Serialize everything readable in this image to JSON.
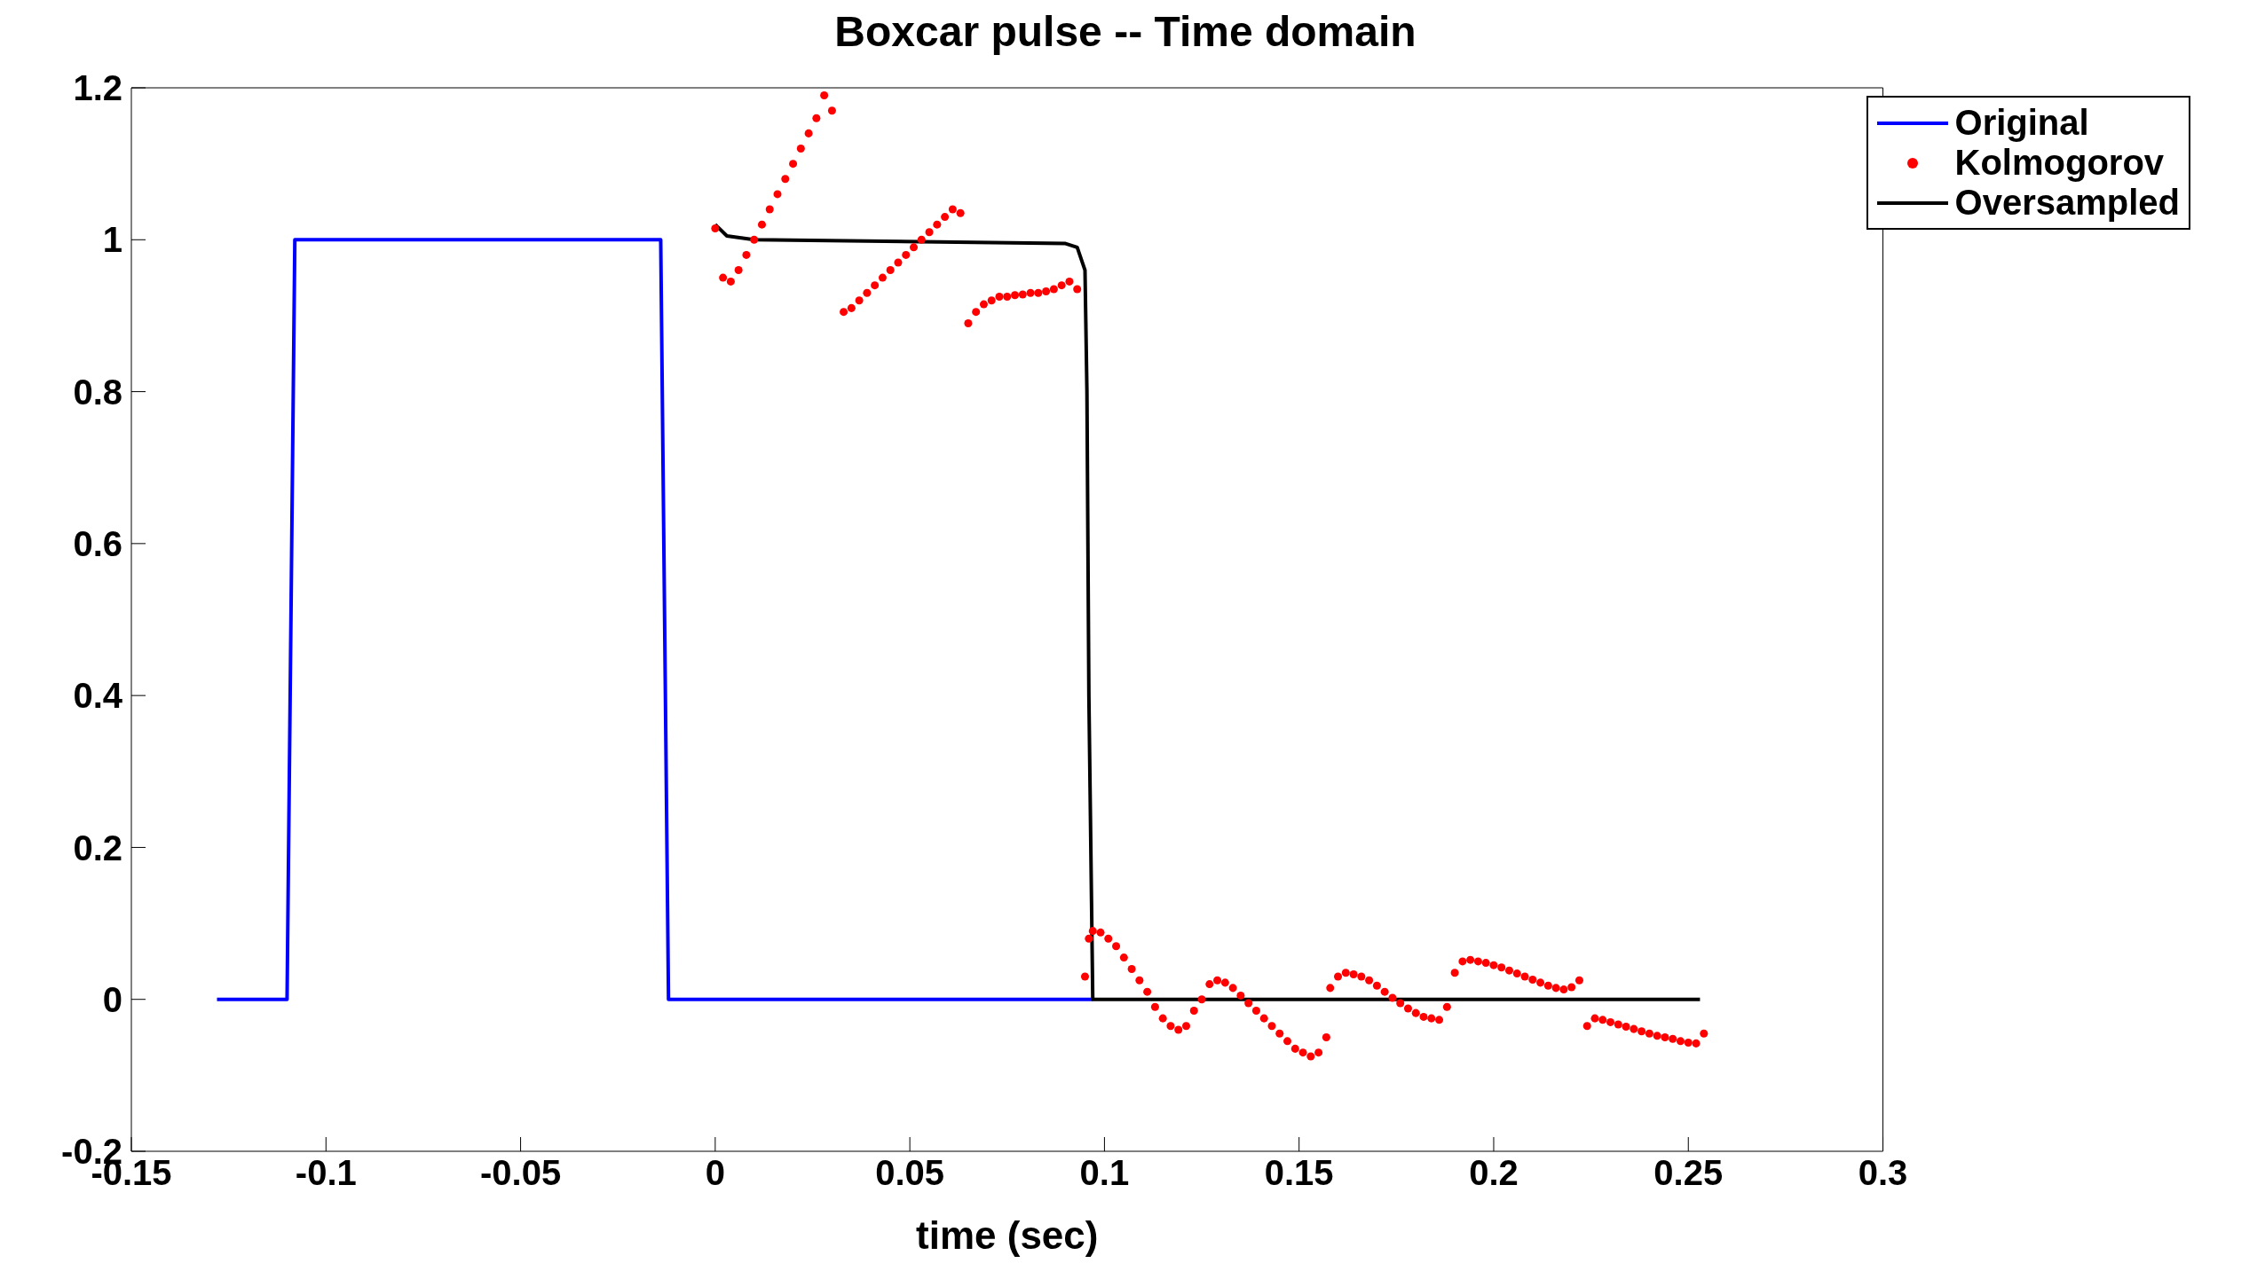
{
  "chart_data": {
    "type": "line",
    "title": "Boxcar pulse -- Time domain",
    "xlabel": "time (sec)",
    "xlim": [
      -0.15,
      0.3
    ],
    "xticks": [
      -0.15,
      -0.1,
      -0.05,
      0,
      0.05,
      0.1,
      0.15,
      0.2,
      0.25,
      0.3
    ],
    "ylim": [
      -0.2,
      1.2
    ],
    "yticks": [
      -0.2,
      0,
      0.2,
      0.4,
      0.6,
      0.8,
      1,
      1.2
    ],
    "grid": false,
    "legend": "top right",
    "series": [
      {
        "name": "Original",
        "color": "#0000ff",
        "x": [
          -0.128,
          -0.11,
          -0.108,
          -0.014,
          -0.012,
          0.097
        ],
        "values": [
          0,
          0,
          1,
          1,
          0,
          0
        ]
      },
      {
        "name": "Kolmogorov",
        "type": "scatter",
        "marker": "circle",
        "color": "#ff0000",
        "x": [
          0,
          0.002,
          0.004,
          0.006,
          0.008,
          0.01,
          0.012,
          0.014,
          0.016,
          0.018,
          0.02,
          0.022,
          0.024,
          0.026,
          0.028,
          0.03,
          0.033,
          0.035,
          0.037,
          0.039,
          0.041,
          0.043,
          0.045,
          0.047,
          0.049,
          0.051,
          0.053,
          0.055,
          0.057,
          0.059,
          0.061,
          0.063,
          0.065,
          0.067,
          0.069,
          0.071,
          0.073,
          0.075,
          0.077,
          0.079,
          0.081,
          0.083,
          0.085,
          0.087,
          0.089,
          0.091,
          0.093,
          0.095,
          0.096,
          0.097,
          0.099,
          0.101,
          0.103,
          0.105,
          0.107,
          0.109,
          0.111,
          0.113,
          0.115,
          0.117,
          0.119,
          0.121,
          0.123,
          0.125,
          0.127,
          0.129,
          0.131,
          0.133,
          0.135,
          0.137,
          0.139,
          0.141,
          0.143,
          0.145,
          0.147,
          0.149,
          0.151,
          0.153,
          0.155,
          0.157,
          0.158,
          0.16,
          0.162,
          0.164,
          0.166,
          0.168,
          0.17,
          0.172,
          0.174,
          0.176,
          0.178,
          0.18,
          0.182,
          0.184,
          0.186,
          0.188,
          0.19,
          0.192,
          0.194,
          0.196,
          0.198,
          0.2,
          0.202,
          0.204,
          0.206,
          0.208,
          0.21,
          0.212,
          0.214,
          0.216,
          0.218,
          0.22,
          0.222,
          0.224,
          0.226,
          0.228,
          0.23,
          0.232,
          0.234,
          0.236,
          0.238,
          0.24,
          0.242,
          0.244,
          0.246,
          0.248,
          0.25,
          0.252,
          0.254
        ],
        "values": [
          1.015,
          0.95,
          0.945,
          0.96,
          0.98,
          1.0,
          1.02,
          1.04,
          1.06,
          1.08,
          1.1,
          1.12,
          1.14,
          1.16,
          1.19,
          1.17,
          0.905,
          0.91,
          0.92,
          0.93,
          0.94,
          0.95,
          0.96,
          0.97,
          0.98,
          0.99,
          1.0,
          1.01,
          1.02,
          1.03,
          1.04,
          1.035,
          0.89,
          0.905,
          0.915,
          0.92,
          0.925,
          0.925,
          0.927,
          0.928,
          0.93,
          0.93,
          0.932,
          0.935,
          0.94,
          0.945,
          0.935,
          0.03,
          0.08,
          0.09,
          0.088,
          0.08,
          0.07,
          0.055,
          0.04,
          0.025,
          0.01,
          -0.01,
          -0.025,
          -0.035,
          -0.04,
          -0.035,
          -0.015,
          0.0,
          0.02,
          0.025,
          0.022,
          0.015,
          0.005,
          -0.005,
          -0.015,
          -0.025,
          -0.035,
          -0.045,
          -0.055,
          -0.065,
          -0.07,
          -0.075,
          -0.07,
          -0.05,
          0.015,
          0.03,
          0.035,
          0.033,
          0.03,
          0.025,
          0.018,
          0.01,
          0.002,
          -0.005,
          -0.012,
          -0.018,
          -0.023,
          -0.025,
          -0.027,
          -0.01,
          0.035,
          0.05,
          0.052,
          0.05,
          0.048,
          0.045,
          0.042,
          0.038,
          0.034,
          0.03,
          0.026,
          0.022,
          0.018,
          0.015,
          0.013,
          0.016,
          0.025,
          -0.035,
          -0.025,
          -0.027,
          -0.03,
          -0.033,
          -0.036,
          -0.039,
          -0.042,
          -0.045,
          -0.048,
          -0.05,
          -0.052,
          -0.055,
          -0.057,
          -0.058,
          -0.045
        ]
      },
      {
        "name": "Oversampled",
        "color": "#000000",
        "x": [
          0,
          0.003,
          0.01,
          0.09,
          0.093,
          0.095,
          0.0955,
          0.096,
          0.097,
          0.253
        ],
        "values": [
          1.02,
          1.005,
          1.0,
          0.995,
          0.99,
          0.96,
          0.8,
          0.4,
          0,
          0
        ]
      }
    ]
  }
}
